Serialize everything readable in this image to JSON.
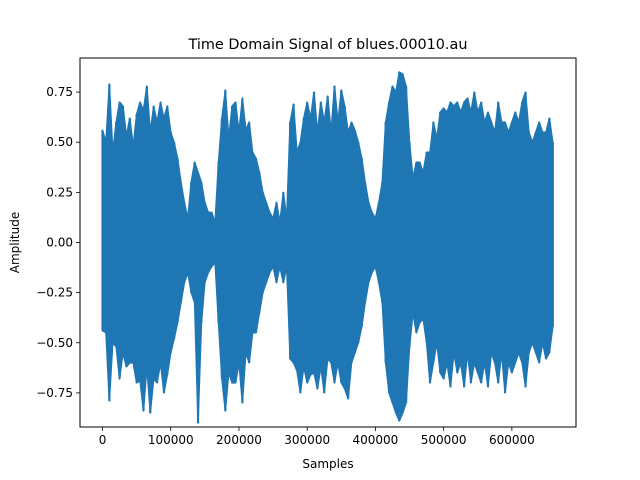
{
  "chart_data": {
    "type": "line",
    "title": "Time Domain Signal of blues.00010.au",
    "xlabel": "Samples",
    "ylabel": "Amplitude",
    "xlim": [
      -33000,
      694000
    ],
    "ylim": [
      -0.92,
      0.92
    ],
    "xticks": [
      0,
      100000,
      200000,
      300000,
      400000,
      500000,
      600000
    ],
    "xtick_labels": [
      "0",
      "100000",
      "200000",
      "300000",
      "400000",
      "500000",
      "600000"
    ],
    "yticks": [
      -0.75,
      -0.5,
      -0.25,
      0.0,
      0.25,
      0.5,
      0.75
    ],
    "ytick_labels": [
      "−0.75",
      "−0.50",
      "−0.25",
      "0.00",
      "0.25",
      "0.50",
      "0.75"
    ],
    "grid": false,
    "series": [
      {
        "color": "#1f77b4",
        "x_start": 0,
        "x_step": 5000,
        "upper": [
          0.56,
          0.5,
          0.79,
          0.45,
          0.6,
          0.7,
          0.68,
          0.53,
          0.62,
          0.48,
          0.64,
          0.7,
          0.66,
          0.78,
          0.55,
          0.68,
          0.6,
          0.7,
          0.62,
          0.68,
          0.55,
          0.5,
          0.42,
          0.3,
          0.2,
          0.12,
          0.3,
          0.4,
          0.35,
          0.3,
          0.2,
          0.15,
          0.15,
          0.1,
          0.4,
          0.62,
          0.76,
          0.52,
          0.68,
          0.7,
          0.55,
          0.72,
          0.56,
          0.6,
          0.45,
          0.42,
          0.35,
          0.25,
          0.2,
          0.15,
          0.12,
          0.2,
          0.1,
          0.25,
          0.12,
          0.6,
          0.69,
          0.45,
          0.5,
          0.62,
          0.7,
          0.62,
          0.75,
          0.55,
          0.7,
          0.6,
          0.73,
          0.55,
          0.78,
          0.6,
          0.76,
          0.68,
          0.55,
          0.6,
          0.56,
          0.5,
          0.42,
          0.3,
          0.2,
          0.15,
          0.12,
          0.2,
          0.3,
          0.6,
          0.7,
          0.78,
          0.75,
          0.85,
          0.84,
          0.78,
          0.5,
          0.32,
          0.4,
          0.4,
          0.35,
          0.45,
          0.45,
          0.6,
          0.52,
          0.65,
          0.67,
          0.65,
          0.7,
          0.68,
          0.7,
          0.65,
          0.7,
          0.72,
          0.65,
          0.75,
          0.65,
          0.7,
          0.6,
          0.65,
          0.6,
          0.55,
          0.7,
          0.6,
          0.6,
          0.55,
          0.6,
          0.65,
          0.6,
          0.7,
          0.75,
          0.55,
          0.5,
          0.55,
          0.6,
          0.55,
          0.55,
          0.62,
          0.5
        ],
        "lower": [
          -0.44,
          -0.45,
          -0.79,
          -0.5,
          -0.52,
          -0.68,
          -0.55,
          -0.62,
          -0.6,
          -0.6,
          -0.7,
          -0.69,
          -0.84,
          -0.62,
          -0.85,
          -0.68,
          -0.7,
          -0.6,
          -0.75,
          -0.66,
          -0.55,
          -0.48,
          -0.4,
          -0.3,
          -0.2,
          -0.15,
          -0.25,
          -0.3,
          -0.9,
          -0.4,
          -0.2,
          -0.15,
          -0.12,
          -0.1,
          -0.4,
          -0.68,
          -0.84,
          -0.65,
          -0.7,
          -0.7,
          -0.6,
          -0.8,
          -0.55,
          -0.6,
          -0.45,
          -0.45,
          -0.35,
          -0.25,
          -0.2,
          -0.15,
          -0.12,
          -0.2,
          -0.12,
          -0.2,
          -0.12,
          -0.58,
          -0.6,
          -0.64,
          -0.75,
          -0.62,
          -0.7,
          -0.66,
          -0.65,
          -0.73,
          -0.62,
          -0.75,
          -0.58,
          -0.6,
          -0.7,
          -0.6,
          -0.7,
          -0.73,
          -0.78,
          -0.6,
          -0.55,
          -0.5,
          -0.42,
          -0.3,
          -0.2,
          -0.15,
          -0.12,
          -0.2,
          -0.3,
          -0.6,
          -0.75,
          -0.8,
          -0.85,
          -0.89,
          -0.85,
          -0.8,
          -0.52,
          -0.35,
          -0.45,
          -0.4,
          -0.38,
          -0.5,
          -0.7,
          -0.6,
          -0.5,
          -0.65,
          -0.68,
          -0.6,
          -0.72,
          -0.55,
          -0.65,
          -0.6,
          -0.72,
          -0.55,
          -0.7,
          -0.6,
          -0.65,
          -0.7,
          -0.6,
          -0.72,
          -0.55,
          -0.6,
          -0.7,
          -0.55,
          -0.75,
          -0.6,
          -0.65,
          -0.6,
          -0.55,
          -0.6,
          -0.72,
          -0.55,
          -0.5,
          -0.55,
          -0.6,
          -0.5,
          -0.58,
          -0.55,
          -0.42
        ]
      }
    ]
  }
}
